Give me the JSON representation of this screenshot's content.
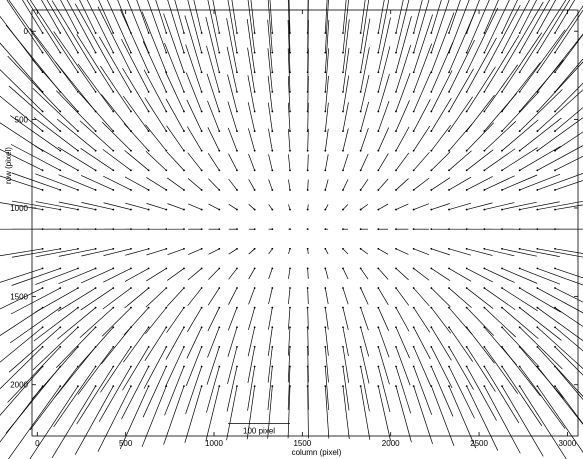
{
  "chart_data": {
    "type": "quiver",
    "title": "",
    "xlabel": "column (pixel)",
    "ylabel": "row (pixel)",
    "xlim": [
      -30,
      3060
    ],
    "ylim": [
      -120,
      2290
    ],
    "y_reversed": true,
    "xticks": [
      0,
      500,
      1000,
      1500,
      2000,
      2500,
      3000
    ],
    "yticks": [
      0,
      500,
      1000,
      1500,
      2000
    ],
    "grid": false,
    "legend": "none",
    "scale_bar": {
      "label": "100 pixel",
      "length": 350,
      "x_start": 1080,
      "y": 2220
    },
    "vector_grid": {
      "x_start": 30,
      "x_step": 100,
      "x_count": 30,
      "y_start": 10,
      "y_step": 111,
      "y_count": 19
    },
    "vector_field": {
      "center": [
        1500,
        1120
      ],
      "description": "radial distortion field pointing toward optical center",
      "gain_x": 0.12,
      "gain_y": 0.26
    }
  }
}
